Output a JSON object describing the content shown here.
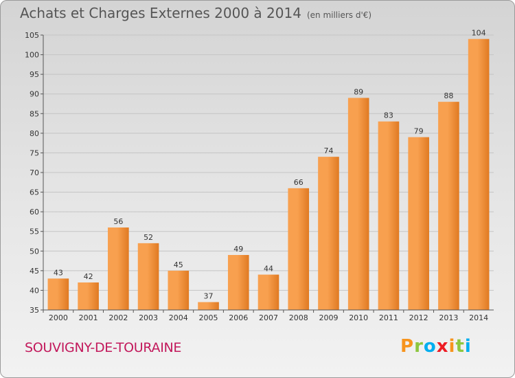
{
  "title": "Achats et Charges Externes 2000 à 2014",
  "unit_note": "(en milliers d'€)",
  "commune": "SOUVIGNY-DE-TOURAINE",
  "logo": {
    "text": "Proxiti",
    "colors": [
      "#f7941d",
      "#8dc63f",
      "#00aeef",
      "#ed1c24",
      "#f7941d",
      "#8dc63f",
      "#00aeef"
    ]
  },
  "colors": {
    "bar_light": "#f8a04f",
    "bar_dark": "#e07a22",
    "grid": "#c4c4c4",
    "text": "#333333"
  },
  "chart_data": {
    "type": "bar",
    "categories": [
      "2000",
      "2001",
      "2002",
      "2003",
      "2004",
      "2005",
      "2006",
      "2007",
      "2008",
      "2009",
      "2010",
      "2011",
      "2012",
      "2013",
      "2014"
    ],
    "values": [
      43,
      42,
      56,
      52,
      45,
      37,
      49,
      44,
      66,
      74,
      89,
      83,
      79,
      88,
      104
    ],
    "ylim": [
      35,
      105
    ],
    "yticks": [
      35,
      40,
      45,
      50,
      55,
      60,
      65,
      70,
      75,
      80,
      85,
      90,
      95,
      100,
      105
    ],
    "grid": true
  }
}
